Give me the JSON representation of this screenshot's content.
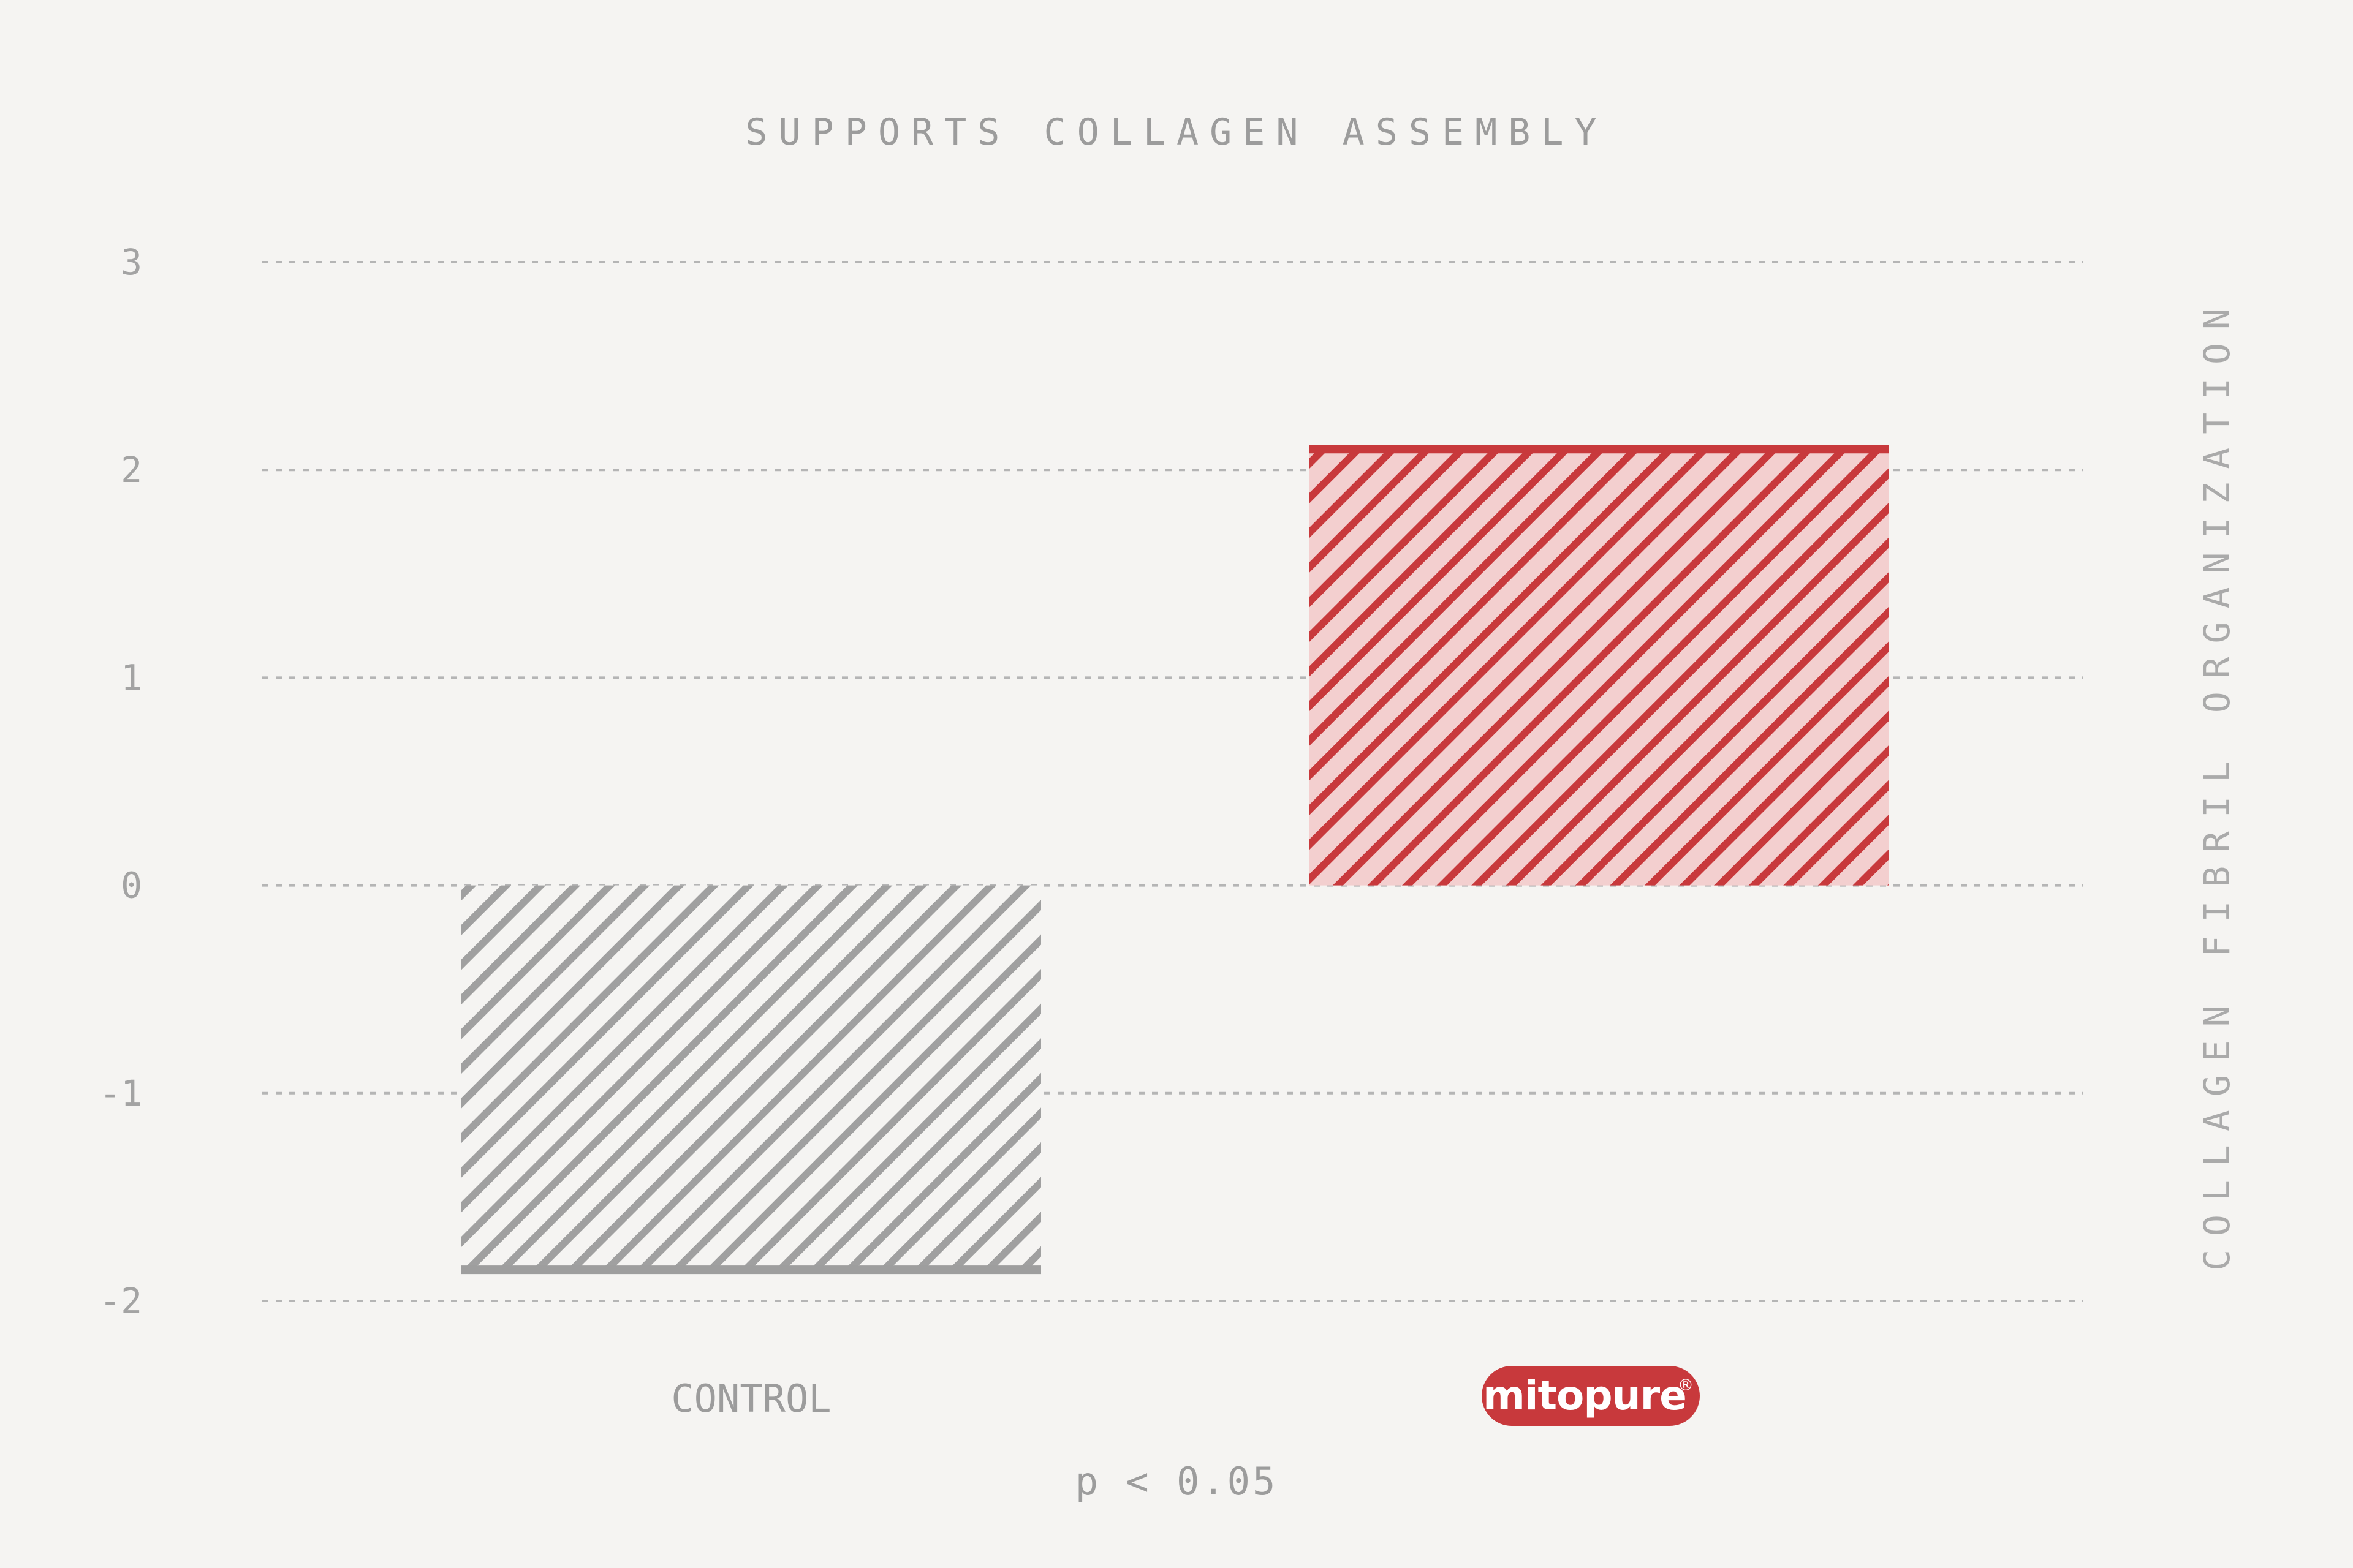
{
  "chart_data": {
    "type": "bar",
    "title": "SUPPORTS COLLAGEN ASSEMBLY",
    "ylabel": "COLLAGEN FIBRIL ORGANIZATION",
    "xlabel": "",
    "categories": [
      "CONTROL",
      "mitopure"
    ],
    "values": [
      -1.85,
      2.1
    ],
    "ylim": [
      -2,
      3
    ],
    "yticks": [
      3,
      2,
      1,
      0,
      -1,
      -2
    ],
    "ytick_labels": [
      "3",
      "2",
      "1",
      "0",
      "-1",
      "-2"
    ],
    "grid": true,
    "grid_style": "dashed",
    "bar_colors": [
      "#9e9e9e",
      "#c8393c"
    ],
    "bar_fill_colors": [
      "#f5f4f2",
      "#f3cfcf"
    ],
    "annotation": "p < 0.05",
    "brand_logo": {
      "text": "mitopure",
      "mark": "®",
      "color": "#c8393c"
    }
  }
}
